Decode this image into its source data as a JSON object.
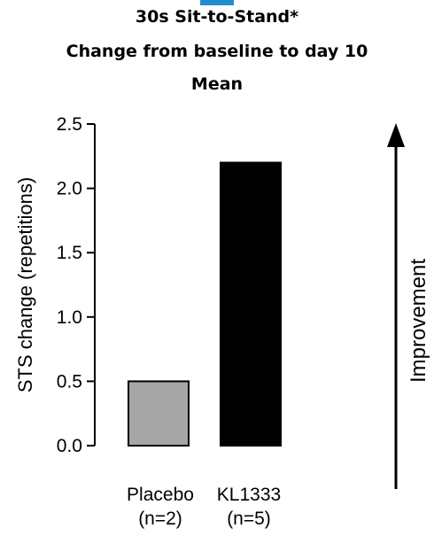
{
  "chart_data": {
    "type": "bar",
    "title_lines": [
      "30s Sit-to-Stand*",
      "Change from baseline to day 10",
      "Mean"
    ],
    "ylabel": "STS change (repetitions)",
    "xlabel": "",
    "ylim": [
      0,
      2.5
    ],
    "yticks": [
      "0.0",
      "0.5",
      "1.0",
      "1.5",
      "2.0",
      "2.5"
    ],
    "yticks_values": [
      0,
      0.5,
      1.0,
      1.5,
      2.0,
      2.5
    ],
    "categories": [
      {
        "name": "Placebo",
        "n": "(n=2)"
      },
      {
        "name": "KL1333",
        "n": "(n=5)"
      }
    ],
    "values": [
      0.5,
      2.2
    ],
    "bar_colors": [
      "#a6a6a6",
      "#000000"
    ],
    "grid": false,
    "annotation": "Improvement"
  },
  "accent_color": "#1f8ecf"
}
